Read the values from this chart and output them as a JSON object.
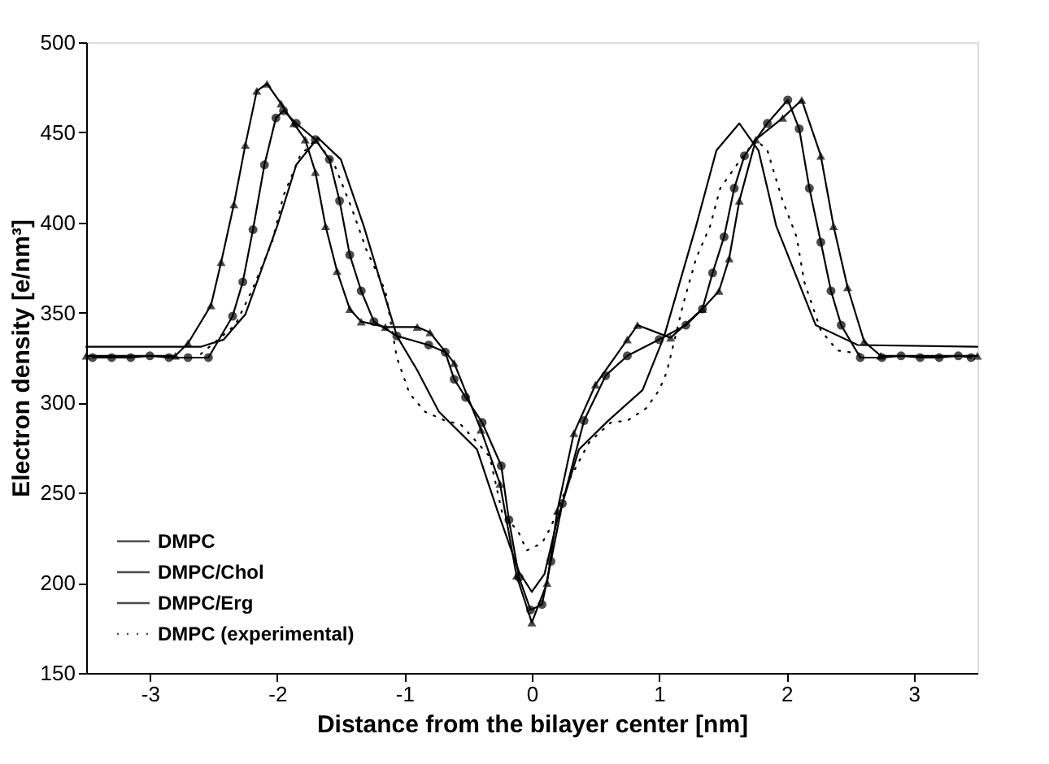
{
  "chart_data": {
    "type": "line",
    "xlabel": "Distance from the bilayer center [nm]",
    "ylabel": "Electron density [e/nm³]",
    "xlim": [
      -3.5,
      3.5
    ],
    "xticks": [
      -3,
      -2,
      -1,
      0,
      1,
      2,
      3
    ],
    "ylim": [
      150,
      500
    ],
    "yticks": [
      150,
      200,
      250,
      300,
      350,
      400,
      450,
      500
    ],
    "grid": false,
    "legend": "bottom left",
    "series": [
      {
        "name": "DMPC",
        "color": "#000000",
        "marker": "none",
        "line_style": "solid",
        "x": [
          -3.5,
          -2.6,
          -2.42,
          -2.25,
          -2.0,
          -1.85,
          -1.68,
          -1.5,
          -1.32,
          -1.06,
          -0.9,
          -0.73,
          -0.43,
          -0.27,
          -0.1,
          0,
          0.1,
          0.2,
          0.37,
          0.6,
          0.87,
          1.04,
          1.29,
          1.45,
          1.63,
          1.78,
          1.92,
          2.23,
          2.56,
          3.5
        ],
        "values": [
          331,
          331,
          335,
          349,
          398,
          432,
          447,
          435,
          398,
          337,
          318,
          295,
          274,
          240,
          206,
          195,
          205,
          235,
          274,
          290,
          307,
          337,
          398,
          440,
          455,
          440,
          398,
          343,
          332,
          331
        ]
      },
      {
        "name": "DMPC/Chol",
        "color": "#000000",
        "marker": "circle",
        "line_style": "solid",
        "x": [
          -3.45,
          -3.3,
          -3.15,
          -3.0,
          -2.85,
          -2.7,
          -2.54,
          -2.35,
          -2.27,
          -2.19,
          -2.1,
          -2.01,
          -1.95,
          -1.85,
          -1.7,
          -1.59,
          -1.51,
          -1.43,
          -1.34,
          -1.24,
          -1.06,
          -0.81,
          -0.68,
          -0.61,
          -0.52,
          -0.39,
          -0.24,
          -0.18,
          -0.1,
          -0.01,
          0.08,
          0.15,
          0.24,
          0.41,
          0.58,
          0.75,
          1.0,
          1.21,
          1.34,
          1.42,
          1.51,
          1.59,
          1.67,
          1.85,
          2.01,
          2.1,
          2.18,
          2.27,
          2.35,
          2.43,
          2.58,
          2.75,
          2.9,
          3.05,
          3.2,
          3.35,
          3.45
        ],
        "values": [
          325,
          325,
          325,
          326,
          325,
          325,
          325,
          348,
          367,
          396,
          432,
          458,
          462,
          455,
          446,
          435,
          412,
          382,
          362,
          345,
          337,
          332,
          328,
          313,
          303,
          289,
          265,
          235,
          203,
          185,
          188,
          212,
          244,
          290,
          315,
          326,
          335,
          343,
          352,
          372,
          392,
          419,
          437,
          455,
          468,
          452,
          419,
          389,
          362,
          343,
          325,
          325,
          326,
          325,
          325,
          326,
          325
        ]
      },
      {
        "name": "DMPC/Erg",
        "color": "#000000",
        "marker": "triangle",
        "line_style": "solid",
        "x": [
          -3.5,
          -2.8,
          -2.7,
          -2.52,
          -2.44,
          -2.34,
          -2.25,
          -2.16,
          -2.08,
          -1.97,
          -1.87,
          -1.78,
          -1.7,
          -1.62,
          -1.53,
          -1.43,
          -1.34,
          -1.15,
          -0.9,
          -0.8,
          -0.61,
          -0.4,
          -0.25,
          -0.12,
          0,
          0.12,
          0.2,
          0.33,
          0.5,
          0.75,
          0.83,
          1.09,
          1.34,
          1.47,
          1.55,
          1.63,
          1.76,
          1.97,
          2.12,
          2.27,
          2.37,
          2.48,
          2.61,
          2.74,
          3.5
        ],
        "values": [
          326,
          326,
          333,
          354,
          378,
          410,
          443,
          473,
          477,
          466,
          455,
          446,
          428,
          398,
          373,
          352,
          345,
          342,
          342,
          339,
          322,
          285,
          255,
          204,
          178,
          200,
          240,
          283,
          310,
          335,
          343,
          336,
          352,
          362,
          380,
          412,
          446,
          458,
          468,
          437,
          398,
          364,
          334,
          326,
          326
        ]
      },
      {
        "name": "DMPC (experimental)",
        "color": "#000000",
        "marker": "none",
        "line_style": "dotted",
        "x": [
          -2.6,
          -2.33,
          -2.2,
          -2.04,
          -1.95,
          -1.82,
          -1.7,
          -1.55,
          -1.41,
          -1.3,
          -1.15,
          -1.06,
          -0.96,
          -0.84,
          -0.68,
          -0.56,
          -0.43,
          -0.33,
          -0.23,
          -0.11,
          -0.04,
          0.08,
          0.15,
          0.3,
          0.45,
          0.62,
          0.75,
          0.9,
          1.0,
          1.06,
          1.19,
          1.29,
          1.4,
          1.48,
          1.63,
          1.76,
          1.85,
          1.97,
          2.08,
          2.14,
          2.27,
          2.4,
          2.6
        ],
        "values": [
          327,
          343,
          362,
          389,
          415,
          437,
          446,
          432,
          407,
          385,
          362,
          325,
          305,
          295,
          290,
          288,
          278,
          270,
          238,
          229,
          218,
          222,
          231,
          258,
          278,
          289,
          290,
          297,
          307,
          317,
          355,
          380,
          398,
          419,
          434,
          446,
          440,
          412,
          392,
          367,
          340,
          329,
          327
        ]
      }
    ]
  }
}
